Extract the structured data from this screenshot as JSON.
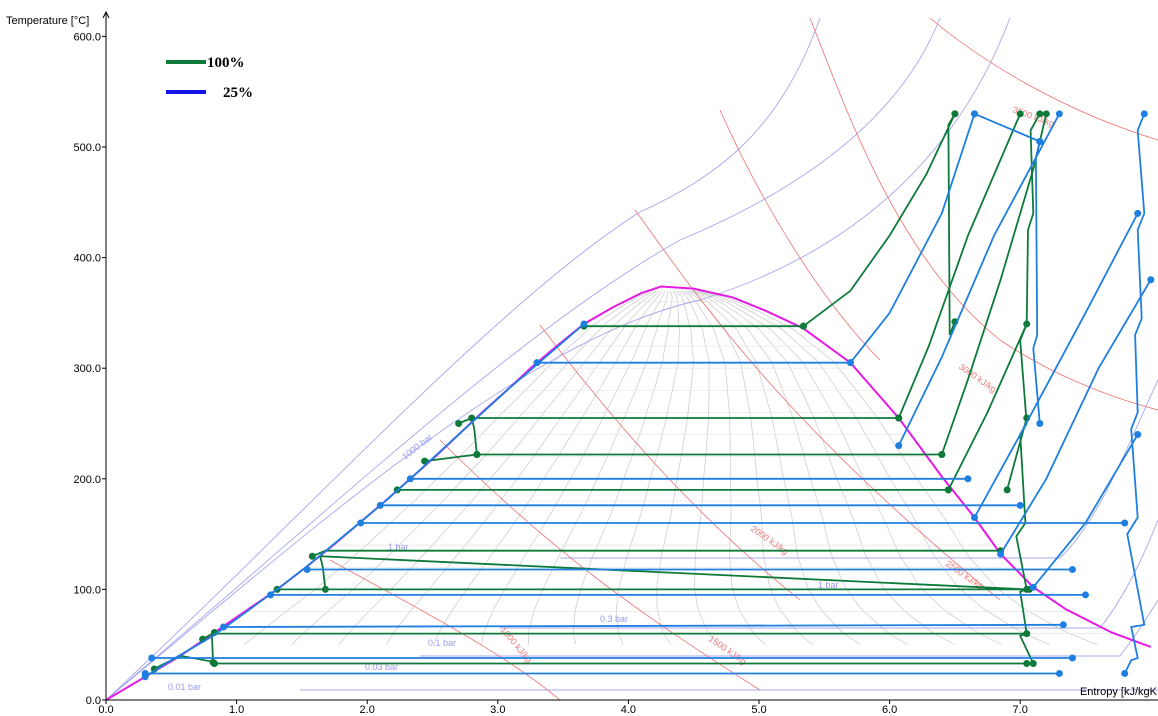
{
  "colors": {
    "series_100": "#0d7a3a",
    "series_25": "#1e7fe0",
    "saturation_dome": "#e619e6",
    "isobar": "#a7a7ee",
    "isenthalp": "#ef7070",
    "quality": "#cfcfcf",
    "legend_25": "#1414e6"
  },
  "chart_data": {
    "type": "line",
    "title": "",
    "xlabel": "Entropy [kJ/kgK",
    "ylabel": "Temperature [°C]",
    "xlim": [
      0,
      8.0
    ],
    "ylim": [
      0,
      620
    ],
    "x_ticks": [
      "0.0",
      "1.0",
      "2.0",
      "3.0",
      "4.0",
      "5.0",
      "6.0",
      "7.0"
    ],
    "y_ticks": [
      "0.0",
      "100.0",
      "200.0",
      "300.0",
      "400.0",
      "500.0",
      "600.0"
    ],
    "legend": {
      "position": "top-left",
      "entries": [
        {
          "label": "100%",
          "color": "#0d7a3a"
        },
        {
          "label": "25%",
          "color": "#1414e6"
        }
      ]
    },
    "saturation_dome": {
      "liquid": [
        [
          0.0,
          0
        ],
        [
          0.3,
          21
        ],
        [
          0.57,
          40
        ],
        [
          0.83,
          61
        ],
        [
          1.31,
          100
        ],
        [
          1.53,
          120
        ],
        [
          1.74,
          140
        ],
        [
          1.94,
          160
        ],
        [
          2.14,
          180
        ],
        [
          2.33,
          200
        ],
        [
          2.52,
          220
        ],
        [
          2.7,
          240
        ],
        [
          2.88,
          260
        ],
        [
          3.07,
          280
        ],
        [
          3.25,
          300
        ],
        [
          3.45,
          320
        ],
        [
          3.66,
          340
        ],
        [
          3.88,
          355
        ],
        [
          4.1,
          368
        ],
        [
          4.25,
          373.9
        ]
      ],
      "vapor": [
        [
          4.25,
          373.9
        ],
        [
          4.5,
          372
        ],
        [
          4.8,
          364
        ],
        [
          5.05,
          352
        ],
        [
          5.34,
          336
        ],
        [
          5.7,
          305
        ],
        [
          6.07,
          255
        ],
        [
          6.4,
          202
        ],
        [
          6.65,
          165
        ],
        [
          6.85,
          132
        ],
        [
          7.1,
          102
        ],
        [
          7.35,
          82
        ],
        [
          7.7,
          61
        ],
        [
          8.0,
          48
        ]
      ]
    },
    "series": [
      {
        "name": "100%",
        "color": "#0d7a3a",
        "lines": [
          [
            [
              0.83,
              33
            ],
            [
              0.8,
              35
            ],
            [
              0.57,
              40
            ],
            [
              0.4,
              30
            ],
            [
              0.35,
              26
            ],
            [
              0.37,
              28
            ]
          ],
          [
            [
              0.83,
              33
            ],
            [
              7.05,
              33
            ]
          ],
          [
            [
              0.82,
              34
            ],
            [
              0.81,
              60
            ],
            [
              7.05,
              60
            ]
          ],
          [
            [
              0.74,
              55
            ],
            [
              0.83,
              61
            ]
          ],
          [
            [
              1.68,
              100
            ],
            [
              1.66,
              120
            ],
            [
              1.64,
              130
            ],
            [
              7.05,
              100
            ]
          ],
          [
            [
              1.31,
              100
            ],
            [
              7.07,
              100
            ]
          ],
          [
            [
              1.58,
              130
            ],
            [
              1.68,
              135
            ],
            [
              6.85,
              135
            ]
          ],
          [
            [
              2.84,
              222
            ],
            [
              2.82,
              245
            ],
            [
              2.8,
              255
            ],
            [
              6.07,
              255
            ]
          ],
          [
            [
              2.84,
              222
            ],
            [
              6.4,
              222
            ]
          ],
          [
            [
              2.44,
              216
            ],
            [
              2.84,
              222
            ]
          ],
          [
            [
              2.7,
              250
            ],
            [
              2.8,
              255
            ]
          ],
          [
            [
              2.23,
              190
            ],
            [
              6.45,
              190
            ]
          ],
          [
            [
              3.66,
              338
            ],
            [
              5.34,
              338
            ]
          ],
          [
            [
              5.34,
              338
            ],
            [
              5.7,
              370
            ],
            [
              6.0,
              420
            ],
            [
              6.28,
              475
            ],
            [
              6.5,
              530
            ]
          ],
          [
            [
              6.07,
              255
            ],
            [
              6.3,
              320
            ],
            [
              6.6,
              420
            ],
            [
              7.0,
              530
            ]
          ],
          [
            [
              6.4,
              222
            ],
            [
              6.6,
              290
            ],
            [
              6.85,
              380
            ],
            [
              7.1,
              480
            ],
            [
              7.2,
              530
            ]
          ],
          [
            [
              6.45,
              190
            ],
            [
              6.75,
              260
            ],
            [
              7.05,
              340
            ]
          ],
          [
            [
              6.9,
              190
            ],
            [
              7.05,
              255
            ]
          ],
          [
            [
              6.5,
              530
            ],
            [
              6.45,
              520
            ],
            [
              6.46,
              330
            ],
            [
              6.5,
              342
            ]
          ],
          [
            [
              7.15,
              530
            ],
            [
              7.08,
              515
            ],
            [
              7.1,
              440
            ],
            [
              7.06,
              425
            ],
            [
              7.05,
              340
            ],
            [
              7.0,
              325
            ],
            [
              7.05,
              250
            ],
            [
              7.0,
              240
            ],
            [
              7.04,
              160
            ],
            [
              6.97,
              148
            ],
            [
              7.05,
              100
            ],
            [
              7.0,
              98
            ],
            [
              7.05,
              60
            ],
            [
              7.0,
              58
            ],
            [
              7.1,
              33
            ]
          ]
        ]
      },
      {
        "name": "25%",
        "color": "#1e7fe0",
        "lines": [
          [
            [
              0.3,
              21
            ],
            [
              0.5,
              36
            ],
            [
              0.82,
              58
            ],
            [
              1.31,
              100
            ],
            [
              1.53,
              120
            ],
            [
              1.94,
              160
            ],
            [
              2.14,
              180
            ],
            [
              2.33,
              200
            ],
            [
              2.7,
              240
            ],
            [
              3.07,
              280
            ],
            [
              3.66,
              340
            ]
          ],
          [
            [
              0.3,
              24
            ],
            [
              7.3,
              24
            ]
          ],
          [
            [
              0.35,
              38
            ],
            [
              7.4,
              38
            ]
          ],
          [
            [
              0.9,
              66
            ],
            [
              7.33,
              68
            ]
          ],
          [
            [
              1.26,
              95
            ],
            [
              7.5,
              95
            ]
          ],
          [
            [
              1.54,
              118
            ],
            [
              7.4,
              118
            ]
          ],
          [
            [
              1.95,
              160
            ],
            [
              7.8,
              160
            ]
          ],
          [
            [
              2.1,
              176
            ],
            [
              7.0,
              176
            ]
          ],
          [
            [
              2.33,
              200
            ],
            [
              6.6,
              200
            ]
          ],
          [
            [
              3.3,
              305
            ],
            [
              5.7,
              305
            ]
          ],
          [
            [
              5.7,
              305
            ],
            [
              6.0,
              350
            ],
            [
              6.4,
              440
            ],
            [
              6.65,
              530
            ]
          ],
          [
            [
              6.65,
              530
            ],
            [
              7.15,
              505
            ]
          ],
          [
            [
              6.07,
              230
            ],
            [
              6.4,
              310
            ],
            [
              6.8,
              420
            ],
            [
              7.3,
              530
            ]
          ],
          [
            [
              6.65,
              165
            ],
            [
              7.0,
              240
            ],
            [
              7.5,
              350
            ],
            [
              7.9,
              440
            ]
          ],
          [
            [
              6.85,
              132
            ],
            [
              7.2,
              200
            ],
            [
              7.6,
              300
            ],
            [
              8.0,
              380
            ]
          ],
          [
            [
              7.1,
              102
            ],
            [
              7.5,
              160
            ],
            [
              7.9,
              240
            ]
          ],
          [
            [
              7.15,
              505
            ],
            [
              7.12,
              490
            ],
            [
              7.13,
              330
            ],
            [
              7.1,
              318
            ],
            [
              7.15,
              250
            ]
          ],
          [
            [
              7.95,
              530
            ],
            [
              7.9,
              515
            ],
            [
              7.95,
              440
            ],
            [
              7.9,
              425
            ],
            [
              7.93,
              345
            ],
            [
              7.88,
              330
            ],
            [
              7.9,
              260
            ],
            [
              7.85,
              245
            ],
            [
              7.9,
              165
            ],
            [
              7.82,
              150
            ],
            [
              7.95,
              68
            ],
            [
              7.85,
              66
            ],
            [
              7.9,
              38
            ],
            [
              7.85,
              36
            ],
            [
              7.8,
              24
            ]
          ]
        ]
      }
    ],
    "iso_labels": {
      "isobars": [
        "1000 bar",
        "1 bar",
        "1 bar",
        "0.3 bar",
        "0.1 bar",
        "0.03 bar",
        "0.01 bar"
      ],
      "isenthalps": [
        "3500 kJ/kg",
        "3000 kJ/kg",
        "2000 kJ/kg",
        "2500 kJ/kg",
        "1000 kJ/kg",
        "1500 kJ/kg"
      ]
    }
  }
}
